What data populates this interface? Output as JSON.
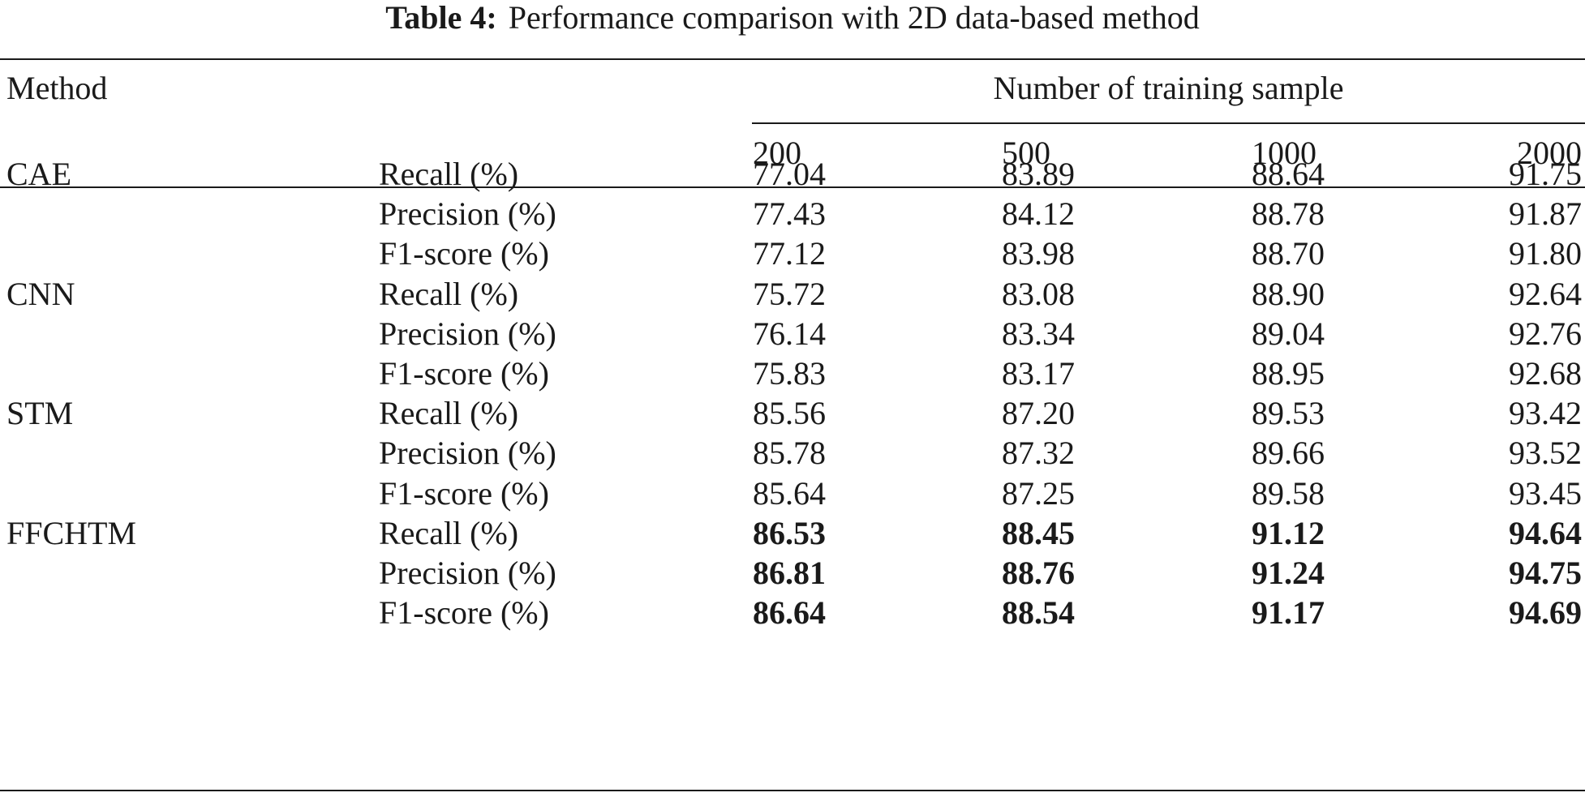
{
  "caption": {
    "label": "Table 4:",
    "text": "Performance comparison with 2D data-based method"
  },
  "table": {
    "method_header": "Method",
    "group_header": "Number of training sample",
    "columns": [
      "200",
      "500",
      "1000",
      "2000"
    ],
    "rows": [
      {
        "method": "CAE",
        "metric": "Recall (%)",
        "values": [
          "77.04",
          "83.89",
          "88.64",
          "91.75"
        ],
        "bold": false
      },
      {
        "method": "",
        "metric": "Precision (%)",
        "values": [
          "77.43",
          "84.12",
          "88.78",
          "91.87"
        ],
        "bold": false
      },
      {
        "method": "",
        "metric": "F1-score (%)",
        "values": [
          "77.12",
          "83.98",
          "88.70",
          "91.80"
        ],
        "bold": false
      },
      {
        "method": "CNN",
        "metric": "Recall (%)",
        "values": [
          "75.72",
          "83.08",
          "88.90",
          "92.64"
        ],
        "bold": false
      },
      {
        "method": "",
        "metric": "Precision (%)",
        "values": [
          "76.14",
          "83.34",
          "89.04",
          "92.76"
        ],
        "bold": false
      },
      {
        "method": "",
        "metric": "F1-score (%)",
        "values": [
          "75.83",
          "83.17",
          "88.95",
          "92.68"
        ],
        "bold": false
      },
      {
        "method": "STM",
        "metric": "Recall (%)",
        "values": [
          "85.56",
          "87.20",
          "89.53",
          "93.42"
        ],
        "bold": false
      },
      {
        "method": "",
        "metric": "Precision (%)",
        "values": [
          "85.78",
          "87.32",
          "89.66",
          "93.52"
        ],
        "bold": false
      },
      {
        "method": "",
        "metric": "F1-score (%)",
        "values": [
          "85.64",
          "87.25",
          "89.58",
          "93.45"
        ],
        "bold": false
      },
      {
        "method": "FFCHTM",
        "metric": "Recall (%)",
        "values": [
          "86.53",
          "88.45",
          "91.12",
          "94.64"
        ],
        "bold": true
      },
      {
        "method": "",
        "metric": "Precision (%)",
        "values": [
          "86.81",
          "88.76",
          "91.24",
          "94.75"
        ],
        "bold": true
      },
      {
        "method": "",
        "metric": "F1-score (%)",
        "values": [
          "86.64",
          "88.54",
          "91.17",
          "94.69"
        ],
        "bold": true
      }
    ]
  }
}
